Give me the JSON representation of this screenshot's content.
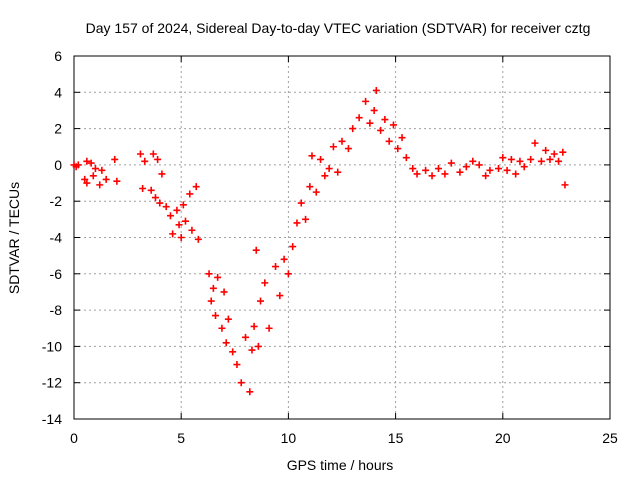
{
  "chart_data": {
    "type": "scatter",
    "title": "Day 157 of 2024, Sidereal Day-to-day VTEC variation (SDTVAR) for receiver cztg",
    "xlabel": "GPS time / hours",
    "ylabel": "SDTVAR / TECUs",
    "xlim": [
      0,
      25
    ],
    "ylim": [
      -14,
      6
    ],
    "xticks": [
      0,
      5,
      10,
      15,
      20,
      25
    ],
    "yticks": [
      -14,
      -12,
      -10,
      -8,
      -6,
      -4,
      -2,
      0,
      2,
      4,
      6
    ],
    "grid": true,
    "marker": "+",
    "color": "#ff0000",
    "series": [
      {
        "name": "SDTVAR",
        "x": [
          0.0,
          0.1,
          0.2,
          0.5,
          0.6,
          0.6,
          0.8,
          0.9,
          1.0,
          1.2,
          1.3,
          1.5,
          1.9,
          2.0,
          3.1,
          3.2,
          3.3,
          3.6,
          3.7,
          3.8,
          3.9,
          4.0,
          4.1,
          4.3,
          4.5,
          4.6,
          4.8,
          4.9,
          5.0,
          5.1,
          5.2,
          5.4,
          5.5,
          5.7,
          5.8,
          6.3,
          6.4,
          6.5,
          6.6,
          6.7,
          6.9,
          7.0,
          7.1,
          7.2,
          7.4,
          7.6,
          7.8,
          8.0,
          8.2,
          8.3,
          8.4,
          8.5,
          8.6,
          8.7,
          8.9,
          9.1,
          9.4,
          9.6,
          9.8,
          10.0,
          10.2,
          10.4,
          10.6,
          10.8,
          11.0,
          11.1,
          11.3,
          11.5,
          11.7,
          11.9,
          12.1,
          12.3,
          12.5,
          12.8,
          13.0,
          13.3,
          13.6,
          13.8,
          14.0,
          14.1,
          14.3,
          14.5,
          14.7,
          14.9,
          15.1,
          15.3,
          15.5,
          15.8,
          16.0,
          16.4,
          16.7,
          17.0,
          17.3,
          17.6,
          18.0,
          18.3,
          18.6,
          18.9,
          19.2,
          19.4,
          19.8,
          20.0,
          20.2,
          20.4,
          20.6,
          20.8,
          21.0,
          21.3,
          21.5,
          21.8,
          22.0,
          22.2,
          22.4,
          22.6,
          22.8,
          22.9
        ],
        "y": [
          0.0,
          -0.1,
          0.0,
          -0.8,
          0.2,
          -1.0,
          0.1,
          -0.6,
          -0.2,
          -1.1,
          -0.3,
          -0.8,
          0.3,
          -0.9,
          0.6,
          -1.3,
          0.2,
          -1.4,
          0.6,
          -1.8,
          0.3,
          -2.1,
          -0.5,
          -2.3,
          -2.8,
          -3.8,
          -2.5,
          -3.3,
          -4.0,
          -2.2,
          -3.1,
          -1.6,
          -3.6,
          -1.2,
          -4.1,
          -6.0,
          -7.5,
          -6.8,
          -8.3,
          -6.2,
          -9.0,
          -7.0,
          -9.8,
          -8.5,
          -10.3,
          -11.0,
          -12.0,
          -9.5,
          -12.5,
          -10.2,
          -8.9,
          -4.7,
          -10.0,
          -7.5,
          -6.5,
          -9.0,
          -5.6,
          -7.2,
          -5.2,
          -6.0,
          -4.5,
          -3.2,
          -2.1,
          -3.0,
          -1.2,
          0.5,
          -1.5,
          0.3,
          -0.6,
          -0.2,
          1.0,
          -0.4,
          1.3,
          0.9,
          2.0,
          2.6,
          3.5,
          2.3,
          3.0,
          4.1,
          1.9,
          2.5,
          1.3,
          2.2,
          0.9,
          1.5,
          0.4,
          -0.2,
          -0.5,
          -0.3,
          -0.6,
          -0.2,
          -0.5,
          0.1,
          -0.4,
          -0.1,
          0.2,
          0.0,
          -0.6,
          -0.3,
          -0.2,
          0.4,
          -0.3,
          0.3,
          -0.5,
          0.2,
          -0.1,
          0.3,
          1.2,
          0.2,
          0.8,
          0.3,
          0.6,
          0.2,
          0.7,
          -1.1
        ]
      }
    ]
  }
}
